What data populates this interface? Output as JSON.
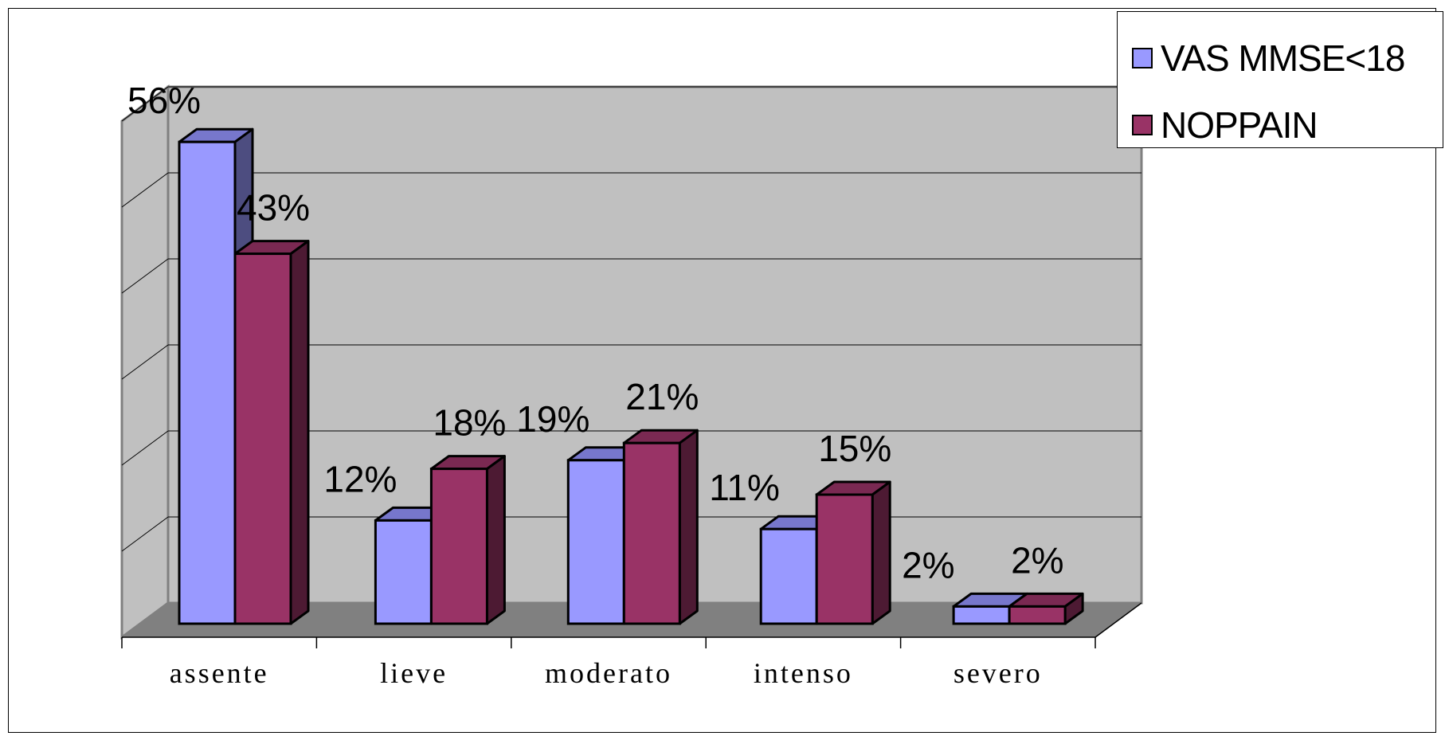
{
  "chart_data": {
    "type": "bar",
    "title": "",
    "xlabel": "",
    "ylabel": "",
    "categories": [
      "assente",
      "lieve",
      "moderato",
      "intenso",
      "severo"
    ],
    "series": [
      {
        "name": "VAS MMSE<18",
        "values": [
          56,
          12,
          19,
          11,
          2
        ],
        "labels": [
          "56%",
          "12%",
          "19%",
          "11%",
          "2%"
        ],
        "color": "#9999ff"
      },
      {
        "name": "NOPPAIN",
        "values": [
          43,
          18,
          21,
          15,
          2
        ],
        "labels": [
          "43%",
          "18%",
          "21%",
          "15%",
          "2%"
        ],
        "color": "#993366"
      }
    ],
    "ylim": [
      0,
      60
    ],
    "grid": true,
    "legend": "top-right",
    "style": "3d-clustered-column"
  }
}
